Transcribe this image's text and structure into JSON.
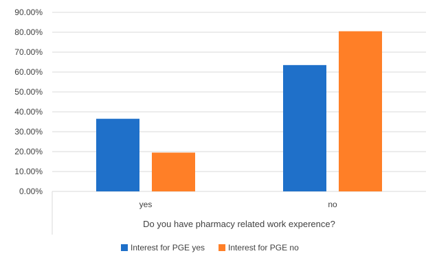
{
  "chart_data": {
    "type": "bar",
    "categories": [
      "yes",
      "no"
    ],
    "series": [
      {
        "name": "Interest for PGE yes",
        "values": [
          36.5,
          63.5
        ],
        "color": "#1F70C9"
      },
      {
        "name": "Interest for PGE no",
        "values": [
          19.5,
          80.5
        ],
        "color": "#FF7F27"
      }
    ],
    "xlabel": "Do you have pharmacy related work experence?",
    "ylabel": "",
    "ylim": [
      0,
      90
    ],
    "yticks": [
      "0.00%",
      "10.00%",
      "20.00%",
      "30.00%",
      "40.00%",
      "50.00%",
      "60.00%",
      "70.00%",
      "80.00%",
      "90.00%"
    ],
    "grid": true,
    "legend": "bottom"
  }
}
